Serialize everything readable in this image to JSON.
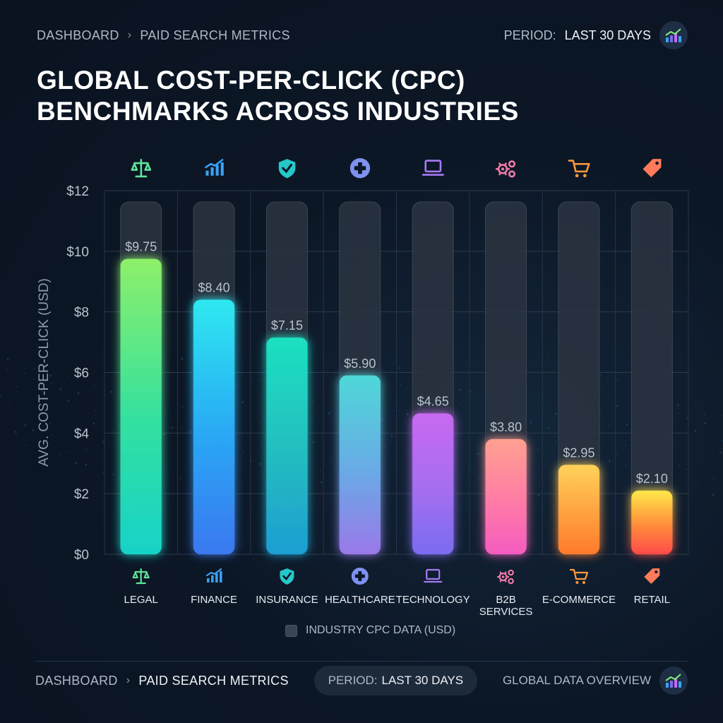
{
  "header": {
    "breadcrumb": [
      "DASHBOARD",
      "PAID SEARCH METRICS"
    ],
    "period_label": "PERIOD:",
    "period_value": "LAST 30 DAYS"
  },
  "chart_data": {
    "type": "bar",
    "title_lines": [
      "GLOBAL COST-PER-CLICK (CPC)",
      "BENCHMARKS ACROSS INDUSTRIES"
    ],
    "ylabel": "AVG. COST-PER-CLICK (USD)",
    "ylim": [
      0,
      12
    ],
    "yticks": [
      0,
      2,
      4,
      6,
      8,
      10,
      12
    ],
    "ytick_labels": [
      "$0",
      "$2",
      "$4",
      "$6",
      "$8",
      "$10",
      "$12"
    ],
    "categories": [
      "LEGAL",
      "FINANCE",
      "INSURANCE",
      "HEALTHCARE",
      "TECHNOLOGY",
      "B2B SERVICES",
      "E-COMMERCE",
      "RETAIL"
    ],
    "values": [
      9.75,
      8.4,
      7.15,
      5.9,
      4.65,
      3.8,
      2.95,
      2.1
    ],
    "value_labels": [
      "$9.75",
      "$8.40",
      "$7.15",
      "$5.90",
      "$4.65",
      "$3.80",
      "$2.95",
      "$2.10"
    ],
    "icons": [
      "scale-icon",
      "growth-chart-icon",
      "shield-check-icon",
      "medical-cross-icon",
      "laptop-icon",
      "gears-icon",
      "shopping-cart-icon",
      "price-tag-icon"
    ],
    "bar_colors": [
      [
        "#8df06a",
        "#33e0a0",
        "#18d2c8"
      ],
      [
        "#2ee8f0",
        "#2aa6f5",
        "#3a78f0"
      ],
      [
        "#1ee0c0",
        "#22bcc0",
        "#1e9ed2"
      ],
      [
        "#4ed8d8",
        "#6aa8e6",
        "#9a78e8"
      ],
      [
        "#c86af0",
        "#a46ef0",
        "#7a6cf0"
      ],
      [
        "#ffa090",
        "#ff7aa6",
        "#f45cc0"
      ],
      [
        "#ffd25a",
        "#ffa040",
        "#ff7a2c"
      ],
      [
        "#ffe84a",
        "#ff8c3a",
        "#ff4a4a"
      ]
    ],
    "icon_colors": [
      "#5fe49a",
      "#3aa2f6",
      "#25c7c9",
      "#7f92f0",
      "#a67bf2",
      "#f07aa8",
      "#ff9a3e",
      "#ff7a5a"
    ],
    "grid": true,
    "legend": "bottom-center",
    "legend_label": "INDUSTRY CPC DATA (USD)"
  },
  "footer": {
    "breadcrumb": [
      "DASHBOARD",
      "PAID SEARCH METRICS"
    ],
    "period_label": "PERIOD:",
    "period_value": "LAST 30 DAYS",
    "overview_label": "GLOBAL DATA OVERVIEW"
  }
}
